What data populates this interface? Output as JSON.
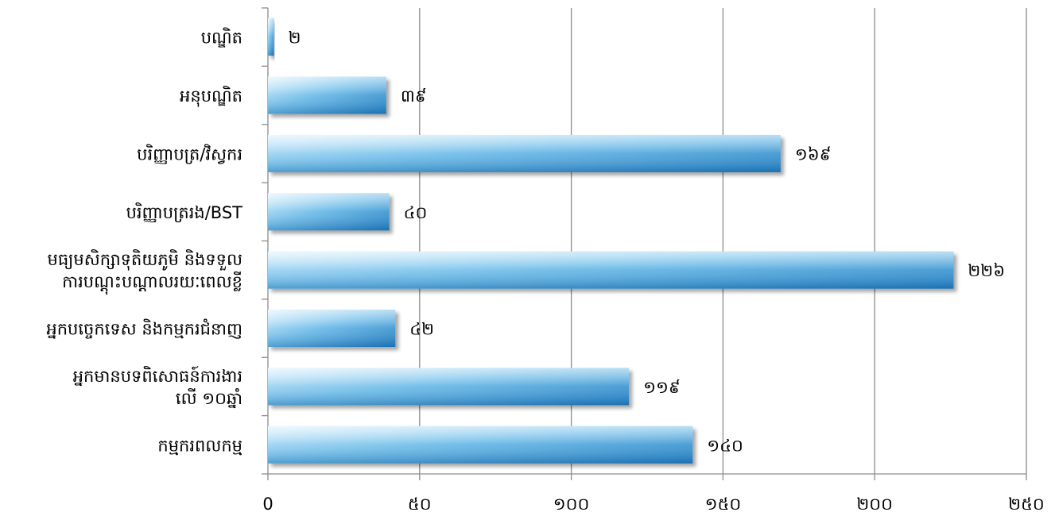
{
  "chart_data": {
    "type": "bar",
    "orientation": "horizontal",
    "categories": [
      [
        "បណ្ឌិត"
      ],
      [
        "អនុបណ្ឌិត"
      ],
      [
        "បរិញ្ញាបត្រ/វិស្វករ"
      ],
      [
        "បរិញ្ញាបត្ររង/BST"
      ],
      [
        "មធ្យមសិក្សាទុតិយភូមិ និងទទួល",
        "ការបណ្តុះបណ្តាលរយៈពេលខ្លី"
      ],
      [
        "អ្នកបច្ចេកទេស និងកម្មករជំនាញ"
      ],
      [
        "អ្នកមានបទពិសោធន៍ការងារ",
        "លើ ១០ឆ្នាំ"
      ],
      [
        "កម្មករពលកម្ម"
      ]
    ],
    "values": [
      2,
      39,
      169,
      40,
      226,
      42,
      119,
      140
    ],
    "value_labels": [
      "២",
      "៣៩",
      "១៦៩",
      "៤០",
      "២២៦",
      "៤២",
      "១១៩",
      "១៤០"
    ],
    "xlim": [
      0,
      250
    ],
    "ticks": [
      0,
      50,
      100,
      150,
      200,
      250
    ],
    "tick_labels": [
      "0",
      "៥០",
      "១០០",
      "១៥០",
      "២០០",
      "២៥០"
    ],
    "grid": true,
    "legend": "none",
    "title": "",
    "xlabel": "",
    "ylabel": "",
    "colors": {
      "bar_dark": "#1f7fc4",
      "bar_mid": "#5fb3e6",
      "bar_light": "#e6f5fd",
      "grid": "#8c8c8c",
      "axis": "#8c8c8c"
    }
  }
}
